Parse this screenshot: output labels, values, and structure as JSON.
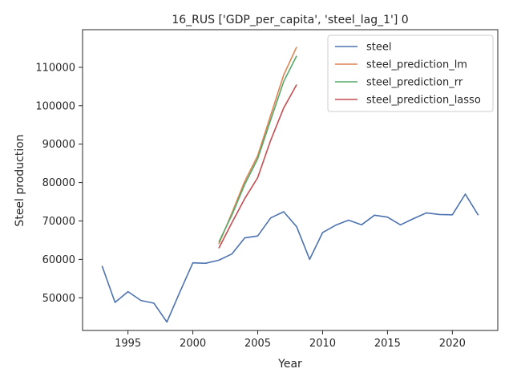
{
  "chart_data": {
    "type": "line",
    "title": "16_RUS ['GDP_per_capita', 'steel_lag_1'] 0",
    "xlabel": "Year",
    "ylabel": "Steel production",
    "xlim": [
      1991.5,
      2023.5
    ],
    "ylim": [
      41500,
      119800
    ],
    "xticks": [
      1995,
      2000,
      2005,
      2010,
      2015,
      2020
    ],
    "yticks": [
      50000,
      60000,
      70000,
      80000,
      90000,
      100000,
      110000
    ],
    "grid": false,
    "legend_position": "top-right",
    "series": [
      {
        "name": "steel",
        "color": "#4c72b0",
        "x": [
          1993,
          1994,
          1995,
          1996,
          1997,
          1998,
          1999,
          2000,
          2001,
          2002,
          2003,
          2004,
          2005,
          2006,
          2007,
          2008,
          2009,
          2010,
          2011,
          2012,
          2013,
          2014,
          2015,
          2016,
          2017,
          2018,
          2019,
          2020,
          2021,
          2022
        ],
        "y": [
          58300,
          48800,
          51600,
          49300,
          48600,
          43700,
          51500,
          59100,
          59000,
          59800,
          61400,
          65600,
          66100,
          70800,
          72400,
          68500,
          60000,
          67000,
          68900,
          70200,
          69000,
          71500,
          71000,
          69000,
          70600,
          72100,
          71700,
          71600,
          77000,
          71500
        ]
      },
      {
        "name": "steel_prediction_lm",
        "color": "#dd8452",
        "x": [
          2002,
          2003,
          2004,
          2005,
          2006,
          2007,
          2008
        ],
        "y": [
          64000,
          72000,
          80300,
          87000,
          97500,
          108000,
          115300
        ]
      },
      {
        "name": "steel_prediction_rr",
        "color": "#55a868",
        "x": [
          2002,
          2003,
          2004,
          2005,
          2006,
          2007,
          2008
        ],
        "y": [
          64500,
          71500,
          79500,
          86200,
          96300,
          106300,
          113000
        ]
      },
      {
        "name": "steel_prediction_lasso",
        "color": "#c44e52",
        "x": [
          2002,
          2003,
          2004,
          2005,
          2006,
          2007,
          2008
        ],
        "y": [
          62900,
          69500,
          75800,
          81300,
          91000,
          99400,
          105500
        ]
      }
    ]
  }
}
